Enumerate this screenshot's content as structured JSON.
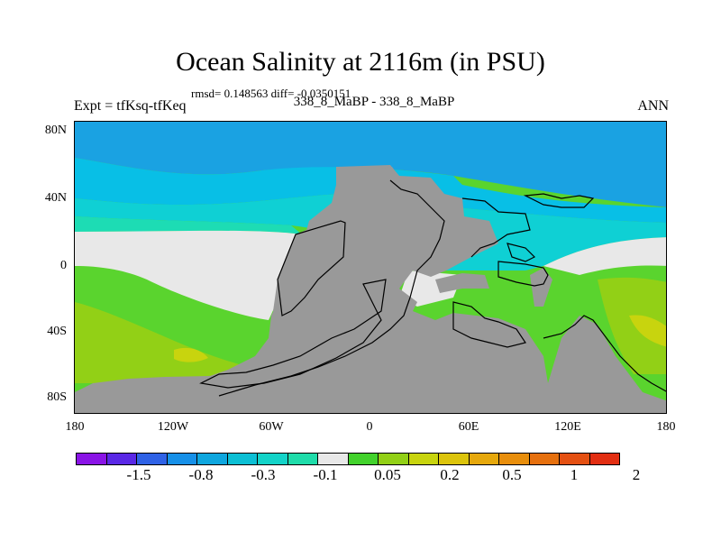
{
  "title": "Ocean Salinity at 2116m (in PSU)",
  "stats_line": "rmsd= 0.148563 diff= -0.0350151",
  "left_label": "Expt = tfKsq-tfKeq",
  "center_label": "338_8_MaBP - 338_8_MaBP",
  "right_label": "ANN",
  "y_ticks": [
    "80N",
    "40N",
    "0",
    "40S",
    "80S"
  ],
  "x_ticks": [
    "180",
    "120W",
    "60W",
    "0",
    "60E",
    "120E",
    "180"
  ],
  "colorbar": {
    "colors": [
      "#8a14e6",
      "#5a28e6",
      "#2f62e6",
      "#1690e8",
      "#0ea6de",
      "#0cbfd4",
      "#13d3c8",
      "#1fdcaa",
      "#e8e8e8",
      "#42d22c",
      "#92d016",
      "#c8d40e",
      "#dcc40c",
      "#e6a80c",
      "#e88e0c",
      "#e6700e",
      "#e45012",
      "#e22e12"
    ],
    "labels": [
      "-1.5",
      "-0.8",
      "-0.3",
      "-0.1",
      "0.05",
      "0.2",
      "0.5",
      "1",
      "2"
    ]
  },
  "land_color": "#999999",
  "colors": {
    "high_lat_blue": "#1aa2e2",
    "mid_blue": "#08bfe6",
    "cyan": "#0fd0d4",
    "teal": "#1ddcb4",
    "neutral": "#e8e8e8",
    "green": "#5ad42e",
    "yellow_green": "#92d016",
    "yellow": "#c8d40e"
  }
}
